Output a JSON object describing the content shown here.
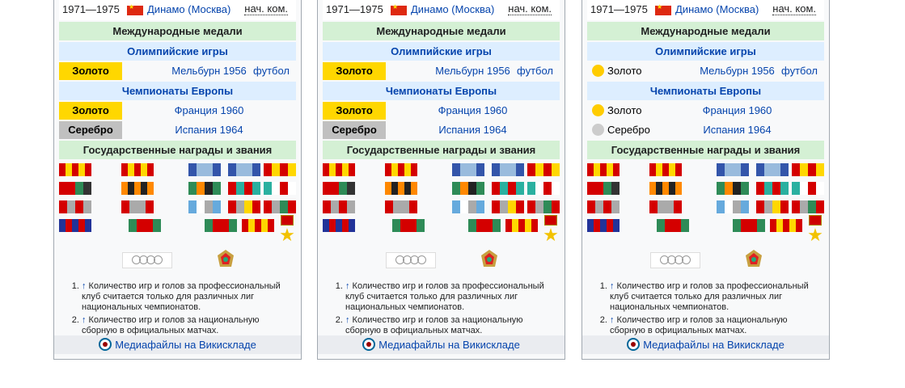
{
  "career": {
    "years": "1971—1975",
    "club": "Динамо (Москва)",
    "role": "нач. ком."
  },
  "headers": {
    "international": "Международные медали",
    "olympics": "Олимпийские игры",
    "euro": "Чемпионаты Европы",
    "state_awards": "Государственные награды и звания"
  },
  "medals": {
    "olympic": {
      "medal": "Золото",
      "place": "Мельбурн 1956",
      "sport": "футбол"
    },
    "euro1": {
      "medal": "Золото",
      "place": "Франция 1960"
    },
    "euro2": {
      "medal": "Серебро",
      "place": "Испания 1964"
    }
  },
  "notes": [
    {
      "arrow": "↑",
      "text": " Количество игр и голов за профессиональный клуб считается только для различных лиг национальных чемпионатов."
    },
    {
      "arrow": "↑",
      "text": " Количество игр и голов за национальную сборную в официальных матчах."
    }
  ],
  "commons": {
    "label": "Медиафайлы на Викискладе",
    "icon": "commons-icon"
  },
  "colors": {
    "gold": "#ffd700",
    "silver": "#c0c0c0",
    "link": "#0645ad",
    "header_green": "#d4f0d4",
    "header_blue": "#ddeeff"
  },
  "icons": {
    "flag": "ussr-flag-icon",
    "olympic": "olympic-rings-icon",
    "badge": "ussr-badge-icon",
    "star": "hero-star-icon"
  }
}
